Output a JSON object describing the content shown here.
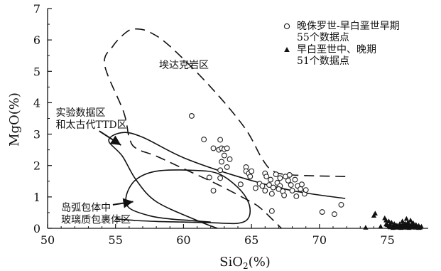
{
  "chart_data": {
    "type": "scatter",
    "xlabel": "SiO2(%)",
    "xlabel_base": "SiO",
    "xlabel_sub": "2",
    "xlabel_unit": "(%)",
    "ylabel": "MgO(%)",
    "xlim": [
      50,
      78
    ],
    "ylim": [
      0,
      7
    ],
    "xticks": [
      50,
      55,
      60,
      65,
      70,
      75
    ],
    "yticks": [
      0,
      1,
      2,
      3,
      4,
      5,
      6,
      7
    ],
    "grid": false,
    "legend_position": "top-right",
    "series": [
      {
        "name": "晚侏罗世-早白垩世早期 55个数据点",
        "legend_line1": "晚侏罗世-早白垩世早期",
        "legend_line2": "55个数据点",
        "marker": "open-circle",
        "color": "#222222",
        "points": [
          [
            60.6,
            3.58
          ],
          [
            61.5,
            2.83
          ],
          [
            62.2,
            2.55
          ],
          [
            62.6,
            2.5
          ],
          [
            62.8,
            2.55
          ],
          [
            62.7,
            2.82
          ],
          [
            63.0,
            2.52
          ],
          [
            63.2,
            2.55
          ],
          [
            63.4,
            2.2
          ],
          [
            63.0,
            2.32
          ],
          [
            62.8,
            2.12
          ],
          [
            63.2,
            1.95
          ],
          [
            62.7,
            1.85
          ],
          [
            62.7,
            1.6
          ],
          [
            61.9,
            1.62
          ],
          [
            62.2,
            1.2
          ],
          [
            64.6,
            1.95
          ],
          [
            64.6,
            1.82
          ],
          [
            64.8,
            1.75
          ],
          [
            65.0,
            1.82
          ],
          [
            64.9,
            1.65
          ],
          [
            65.6,
            1.42
          ],
          [
            65.8,
            1.35
          ],
          [
            66.0,
            1.75
          ],
          [
            66.1,
            1.65
          ],
          [
            66.4,
            1.55
          ],
          [
            66.3,
            1.38
          ],
          [
            66.6,
            1.3
          ],
          [
            66.5,
            1.1
          ],
          [
            66.8,
            1.72
          ],
          [
            66.9,
            1.45
          ],
          [
            67.1,
            1.6
          ],
          [
            67.1,
            1.35
          ],
          [
            67.3,
            1.18
          ],
          [
            67.0,
            1.25
          ],
          [
            67.5,
            1.65
          ],
          [
            67.7,
            1.52
          ],
          [
            67.9,
            1.38
          ],
          [
            68.2,
            1.55
          ],
          [
            68.0,
            1.2
          ],
          [
            68.4,
            1.35
          ],
          [
            68.6,
            1.25
          ],
          [
            68.3,
            1.02
          ],
          [
            68.9,
            1.1
          ],
          [
            69.0,
            1.22
          ],
          [
            68.7,
            1.4
          ],
          [
            67.4,
            1.05
          ],
          [
            66.5,
            0.55
          ],
          [
            70.2,
            0.52
          ],
          [
            71.1,
            0.45
          ],
          [
            71.6,
            0.75
          ],
          [
            64.2,
            1.4
          ],
          [
            65.3,
            1.28
          ],
          [
            67.8,
            1.7
          ],
          [
            66.0,
            1.2
          ]
        ]
      },
      {
        "name": "早白垩世中、晚期 51个数据点",
        "legend_line1": "早白垩世中、晚期",
        "legend_line2": "51个数据点",
        "marker": "filled-triangle",
        "color": "#111111",
        "points": [
          [
            73.4,
            0.02
          ],
          [
            74.0,
            0.4
          ],
          [
            74.1,
            0.47
          ],
          [
            74.5,
            0.05
          ],
          [
            74.8,
            0.32
          ],
          [
            74.9,
            0.25
          ],
          [
            75.0,
            0.1
          ],
          [
            75.1,
            0.22
          ],
          [
            75.2,
            0.12
          ],
          [
            75.2,
            0.03
          ],
          [
            75.3,
            0.18
          ],
          [
            75.4,
            0.06
          ],
          [
            75.5,
            0.14
          ],
          [
            75.6,
            0.02
          ],
          [
            75.7,
            0.09
          ],
          [
            75.8,
            0.04
          ],
          [
            75.9,
            0.13
          ],
          [
            76.0,
            0.06
          ],
          [
            76.0,
            0.01
          ],
          [
            76.1,
            0.22
          ],
          [
            76.2,
            0.08
          ],
          [
            76.3,
            0.15
          ],
          [
            76.3,
            0.03
          ],
          [
            76.4,
            0.3
          ],
          [
            76.4,
            0.1
          ],
          [
            76.5,
            0.05
          ],
          [
            76.5,
            0.18
          ],
          [
            76.6,
            0.12
          ],
          [
            76.6,
            0.01
          ],
          [
            76.7,
            0.07
          ],
          [
            76.7,
            0.25
          ],
          [
            76.8,
            0.03
          ],
          [
            76.8,
            0.14
          ],
          [
            76.9,
            0.09
          ],
          [
            77.0,
            0.02
          ],
          [
            77.0,
            0.06
          ],
          [
            77.1,
            0.11
          ],
          [
            77.2,
            0.04
          ],
          [
            77.3,
            0.08
          ],
          [
            77.4,
            0.02
          ],
          [
            77.5,
            0.05
          ],
          [
            76.2,
            0.02
          ],
          [
            75.9,
            0.02
          ],
          [
            75.4,
            0.01
          ],
          [
            76.9,
            0.16
          ],
          [
            76.1,
            0.11
          ],
          [
            75.6,
            0.09
          ],
          [
            75.1,
            0.05
          ],
          [
            74.9,
            0.12
          ],
          [
            77.3,
            0.01
          ],
          [
            76.5,
            0.02
          ]
        ]
      }
    ],
    "regions": [
      {
        "name": "埃达克岩区",
        "style": "dashed",
        "label_anchor": [
          58.2,
          5.1
        ],
        "path": [
          [
            71.9,
            1.65
          ],
          [
            68.0,
            1.7
          ],
          [
            66.6,
            1.82
          ],
          [
            65.8,
            2.2
          ],
          [
            64.5,
            3.2
          ],
          [
            62.0,
            4.5
          ],
          [
            59.0,
            5.8
          ],
          [
            57.5,
            6.25
          ],
          [
            56.5,
            6.35
          ],
          [
            55.8,
            6.25
          ],
          [
            54.8,
            5.8
          ],
          [
            54.2,
            5.2
          ],
          [
            55.6,
            3.7
          ],
          [
            56.0,
            2.9
          ],
          [
            56.5,
            2.55
          ],
          [
            58.0,
            2.3
          ],
          [
            60.0,
            1.9
          ],
          [
            62.5,
            1.4
          ],
          [
            64.5,
            0.95
          ],
          [
            65.5,
            0.7
          ],
          [
            66.5,
            0.3
          ],
          [
            67.2,
            0.0
          ]
        ]
      },
      {
        "name": "实验数据区和太古代TTD区",
        "style": "solid",
        "label_line1": "实验数据区",
        "label_line2": "和太古代TTD区",
        "label_anchor": [
          50.6,
          3.58
        ],
        "arrow_from": [
          53.8,
          3.1
        ],
        "arrow_to": [
          55.4,
          2.65
        ],
        "path": [
          [
            71.9,
            0.95
          ],
          [
            68.0,
            1.2
          ],
          [
            64.0,
            1.65
          ],
          [
            60.0,
            2.25
          ],
          [
            57.0,
            2.9
          ],
          [
            55.5,
            3.05
          ],
          [
            54.5,
            2.8
          ],
          [
            55.5,
            2.3
          ],
          [
            56.5,
            1.55
          ],
          [
            58.0,
            0.85
          ],
          [
            61.0,
            0.25
          ],
          [
            62.5,
            0.0
          ]
        ]
      },
      {
        "name": "岛弧包体中玻璃质包裹体区",
        "style": "solid",
        "label_line1": "岛弧包体中",
        "label_line2": "玻璃质包裹体区",
        "label_anchor": [
          51.0,
          0.55
        ],
        "arrow_from": [
          54.8,
          0.75
        ],
        "arrow_to": [
          56.3,
          0.85
        ],
        "path": [
          [
            55.0,
            0.3
          ],
          [
            56.5,
            0.25
          ],
          [
            58.0,
            0.22
          ],
          [
            60.0,
            0.2
          ],
          [
            62.0,
            0.18
          ],
          [
            64.0,
            0.16
          ],
          [
            64.8,
            0.35
          ],
          [
            64.8,
            0.8
          ],
          [
            64.0,
            1.3
          ],
          [
            62.5,
            1.75
          ],
          [
            60.5,
            1.85
          ],
          [
            58.0,
            1.82
          ],
          [
            56.5,
            1.55
          ],
          [
            55.8,
            1.05
          ],
          [
            56.0,
            0.65
          ],
          [
            57.5,
            0.4
          ],
          [
            59.0,
            0.3
          ],
          [
            60.5,
            0.25
          ],
          [
            62.0,
            0.2
          ]
        ]
      }
    ]
  }
}
